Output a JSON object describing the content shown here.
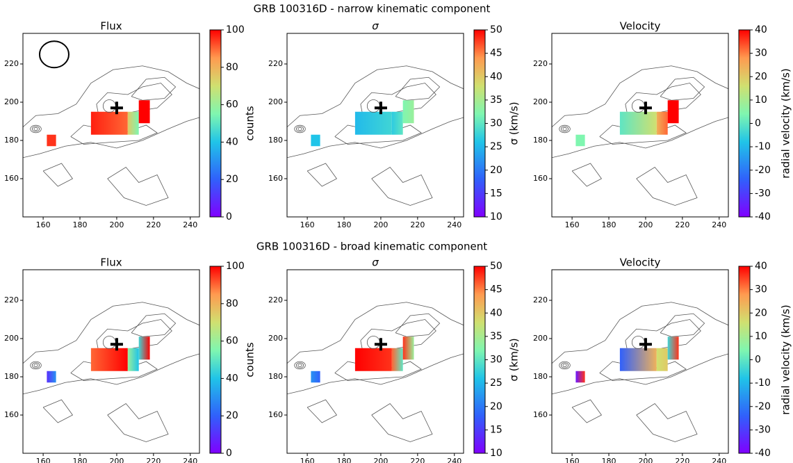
{
  "figure_titles": [
    "GRB 100316D - narrow kinematic component",
    "GRB 100316D - broad kinematic component"
  ],
  "chart_data": [
    {
      "type": "image",
      "title": "Flux",
      "xlim": [
        149,
        245
      ],
      "ylim": [
        140,
        236
      ],
      "xticks": [
        160,
        180,
        200,
        220,
        240
      ],
      "yticks": [
        160,
        180,
        200,
        220
      ],
      "colorbar": {
        "label": "counts",
        "lim": [
          0,
          100
        ],
        "ticks": [
          0,
          20,
          40,
          60,
          80,
          100
        ]
      }
    },
    {
      "type": "image",
      "title": "σ",
      "xlim": [
        149,
        245
      ],
      "ylim": [
        140,
        236
      ],
      "xticks": [
        160,
        180,
        200,
        220,
        240
      ],
      "yticks": [
        160,
        180,
        200,
        220
      ],
      "colorbar": {
        "label": "σ (km/s)",
        "lim": [
          10,
          50
        ],
        "ticks": [
          10,
          15,
          20,
          25,
          30,
          35,
          40,
          45,
          50
        ]
      }
    },
    {
      "type": "image",
      "title": "Velocity",
      "xlim": [
        149,
        245
      ],
      "ylim": [
        140,
        236
      ],
      "xticks": [
        160,
        180,
        200,
        220,
        240
      ],
      "yticks": [
        160,
        180,
        200,
        220
      ],
      "colorbar": {
        "label": "radial velocity (km/s)",
        "lim": [
          -40,
          40
        ],
        "ticks": [
          -40,
          -30,
          -20,
          -10,
          0,
          10,
          20,
          30,
          40
        ]
      }
    },
    {
      "type": "image",
      "title": "Flux",
      "xlim": [
        149,
        245
      ],
      "ylim": [
        140,
        236
      ],
      "xticks": [
        160,
        180,
        200,
        220,
        240
      ],
      "yticks": [
        160,
        180,
        200,
        220
      ],
      "colorbar": {
        "label": "counts",
        "lim": [
          0,
          100
        ],
        "ticks": [
          0,
          20,
          40,
          60,
          80,
          100
        ]
      }
    },
    {
      "type": "image",
      "title": "σ",
      "xlim": [
        149,
        245
      ],
      "ylim": [
        140,
        236
      ],
      "xticks": [
        160,
        180,
        200,
        220,
        240
      ],
      "yticks": [
        160,
        180,
        200,
        220
      ],
      "colorbar": {
        "label": "σ (km/s)",
        "lim": [
          10,
          50
        ],
        "ticks": [
          10,
          15,
          20,
          25,
          30,
          35,
          40,
          45,
          50
        ]
      }
    },
    {
      "type": "image",
      "title": "Velocity",
      "xlim": [
        149,
        245
      ],
      "ylim": [
        140,
        236
      ],
      "xticks": [
        160,
        180,
        200,
        220,
        240
      ],
      "yticks": [
        160,
        180,
        200,
        220
      ],
      "colorbar": {
        "label": "radial velocity (km/s)",
        "lim": [
          -40,
          40
        ],
        "ticks": [
          -40,
          -30,
          -20,
          -10,
          0,
          10,
          20,
          30,
          40
        ]
      }
    }
  ]
}
